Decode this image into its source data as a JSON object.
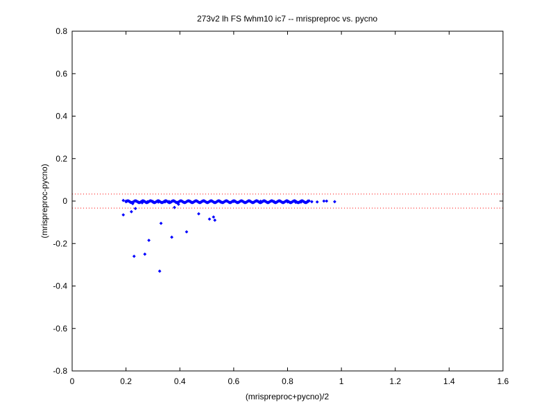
{
  "chart_data": {
    "type": "scatter",
    "title": "273v2 lh FS fwhm10 ic7 -- mrispreproc vs. pycno",
    "xlabel": "(mrispreproc+pycno)/2",
    "ylabel": "(mrispreproc-pycno)",
    "xlim": [
      0,
      1.6
    ],
    "ylim": [
      -0.8,
      0.8
    ],
    "xticks": [
      "0",
      "0.2",
      "0.4",
      "0.6",
      "0.8",
      "1",
      "1.2",
      "1.4",
      "1.6"
    ],
    "yticks": [
      "0.8",
      "0.6",
      "0.4",
      "0.2",
      "0",
      "-0.2",
      "-0.4",
      "-0.6",
      "-0.8"
    ],
    "grid": false,
    "reference_lines": [
      {
        "y": 0.033,
        "style": "dotted",
        "color": "#ff0000"
      },
      {
        "y": -0.033,
        "style": "dotted",
        "color": "#ff0000"
      }
    ],
    "series": [
      {
        "marker": "dot",
        "color": "#0000ff",
        "points": [
          [
            0.19,
            0.003
          ],
          [
            0.2,
            0.0
          ],
          [
            0.19,
            -0.065
          ],
          [
            0.215,
            -0.005
          ],
          [
            0.22,
            -0.05
          ],
          [
            0.225,
            -0.012
          ],
          [
            0.235,
            -0.035
          ],
          [
            0.23,
            -0.26
          ],
          [
            0.245,
            -0.004
          ],
          [
            0.26,
            -0.008
          ],
          [
            0.27,
            -0.25
          ],
          [
            0.28,
            -0.003
          ],
          [
            0.285,
            -0.185
          ],
          [
            0.3,
            -0.002
          ],
          [
            0.32,
            -0.005
          ],
          [
            0.325,
            -0.33
          ],
          [
            0.33,
            -0.105
          ],
          [
            0.345,
            -0.004
          ],
          [
            0.36,
            -0.002
          ],
          [
            0.37,
            -0.17
          ],
          [
            0.38,
            -0.03
          ],
          [
            0.385,
            -0.006
          ],
          [
            0.395,
            -0.015
          ],
          [
            0.41,
            -0.003
          ],
          [
            0.425,
            -0.145
          ],
          [
            0.44,
            -0.002
          ],
          [
            0.47,
            -0.06
          ],
          [
            0.48,
            -0.003
          ],
          [
            0.51,
            -0.085
          ],
          [
            0.525,
            -0.075
          ],
          [
            0.53,
            -0.09
          ],
          [
            0.55,
            -0.004
          ],
          [
            0.6,
            -0.002
          ],
          [
            0.65,
            -0.003
          ],
          [
            0.7,
            -0.001
          ],
          [
            0.75,
            -0.002
          ],
          [
            0.8,
            -0.004
          ],
          [
            0.83,
            -0.006
          ],
          [
            0.85,
            -0.005
          ],
          [
            0.875,
            0.0
          ],
          [
            0.89,
            -0.003
          ],
          [
            0.91,
            -0.004
          ],
          [
            0.935,
            0.0
          ],
          [
            0.945,
            0.0
          ],
          [
            0.975,
            -0.003
          ]
        ]
      }
    ],
    "dense_band": {
      "color": "#0000ff",
      "x_from": 0.2,
      "x_to": 0.88,
      "center_y": -0.003,
      "spread_y": 0.004,
      "count": 360
    },
    "plot_colors": {
      "axes": "#000000",
      "background": "#ffffff"
    }
  }
}
